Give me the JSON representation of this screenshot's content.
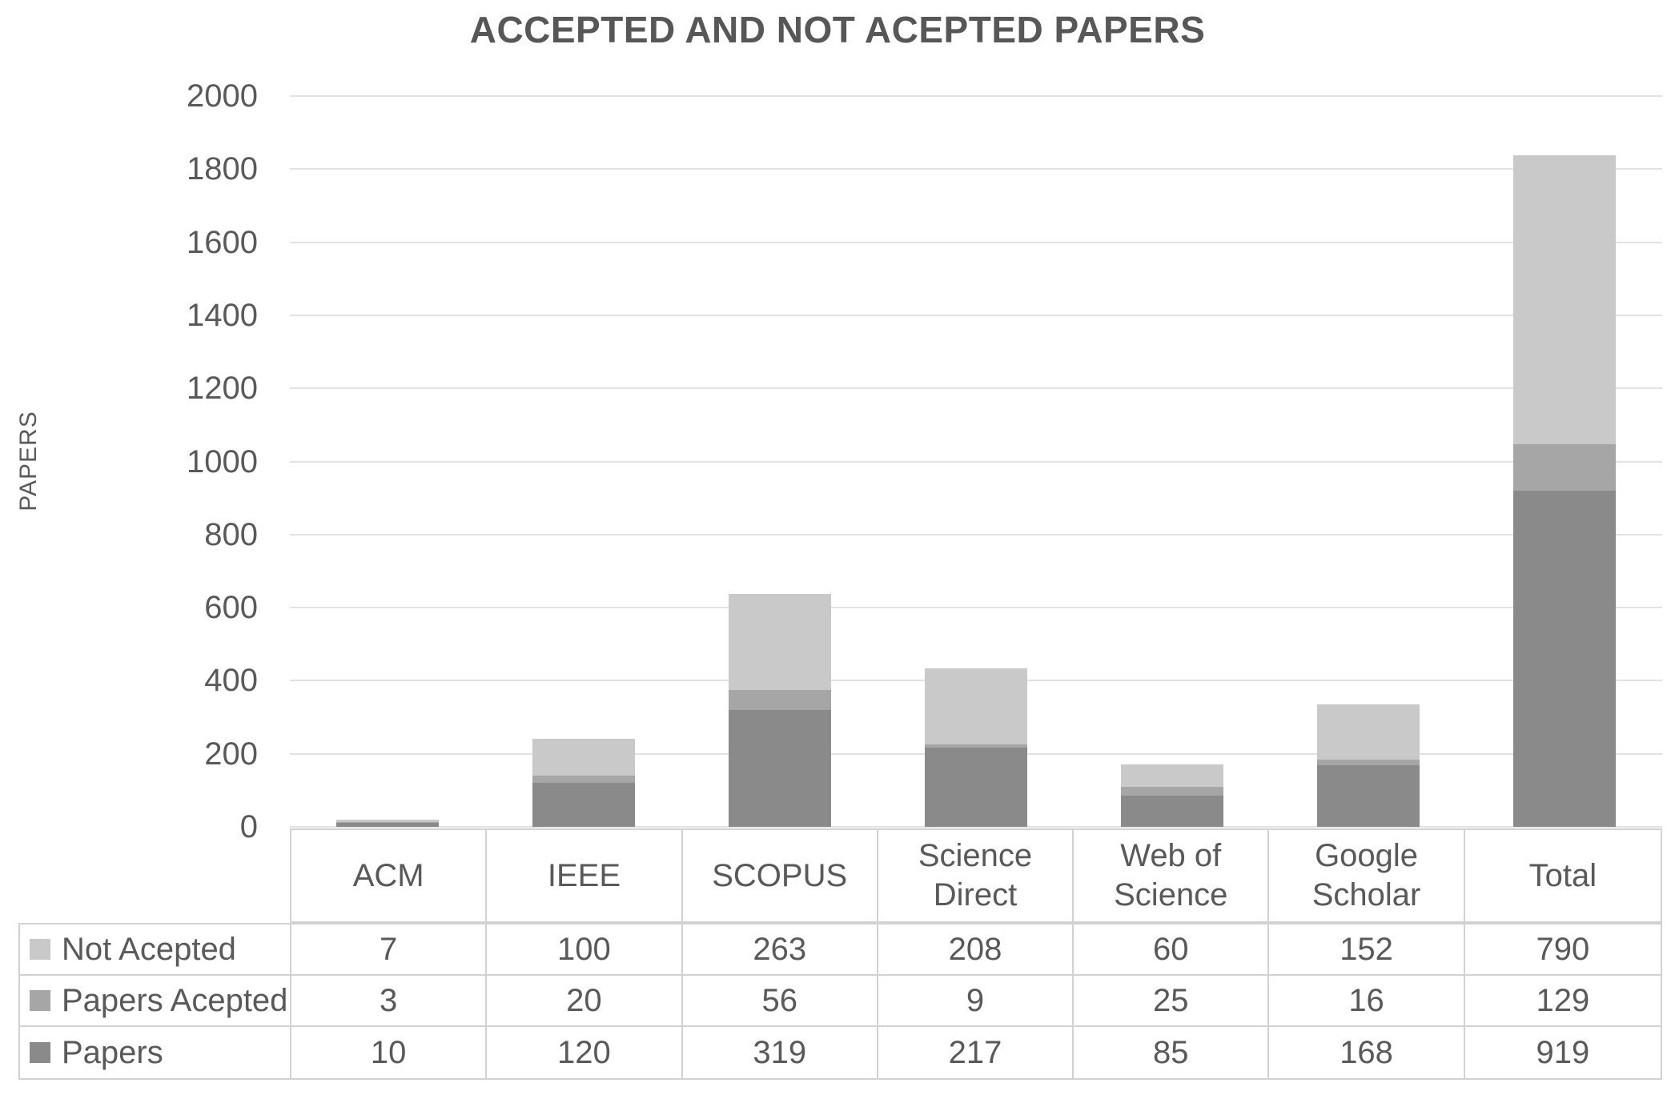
{
  "title": "ACCEPTED AND NOT ACEPTED PAPERS",
  "chart_data": {
    "type": "bar",
    "stacked": true,
    "title": "ACCEPTED AND NOT ACEPTED PAPERS",
    "xlabel": "",
    "ylabel": "PAPERS",
    "categories": [
      "ACM",
      "IEEE",
      "SCOPUS",
      "Science Direct",
      "Web of Science",
      "Google Scholar",
      "Total"
    ],
    "series": [
      {
        "name": "Papers",
        "color": "#8a8a8a",
        "values": [
          10,
          120,
          319,
          217,
          85,
          168,
          919
        ]
      },
      {
        "name": "Papers Acepted",
        "color": "#a6a6a6",
        "values": [
          3,
          20,
          56,
          9,
          25,
          16,
          129
        ]
      },
      {
        "name": "Not Acepted",
        "color": "#c9c9c9",
        "values": [
          7,
          100,
          263,
          208,
          60,
          152,
          790
        ]
      }
    ],
    "stack_order_bottom_to_top": [
      "Papers",
      "Papers Acepted",
      "Not Acepted"
    ],
    "ylim": [
      0,
      2000
    ],
    "y_tick_step": 200,
    "grid": true,
    "legend_position": "data-table-left",
    "data_table_row_order_top_to_bottom": [
      "Not Acepted",
      "Papers Acepted",
      "Papers"
    ]
  },
  "colors": {
    "text": "#595959",
    "gridline": "#e2e2e2",
    "table_border": "#d2d2d2",
    "series_papers": "#8a8a8a",
    "series_papers_acepted": "#a6a6a6",
    "series_not_acepted": "#c9c9c9"
  }
}
